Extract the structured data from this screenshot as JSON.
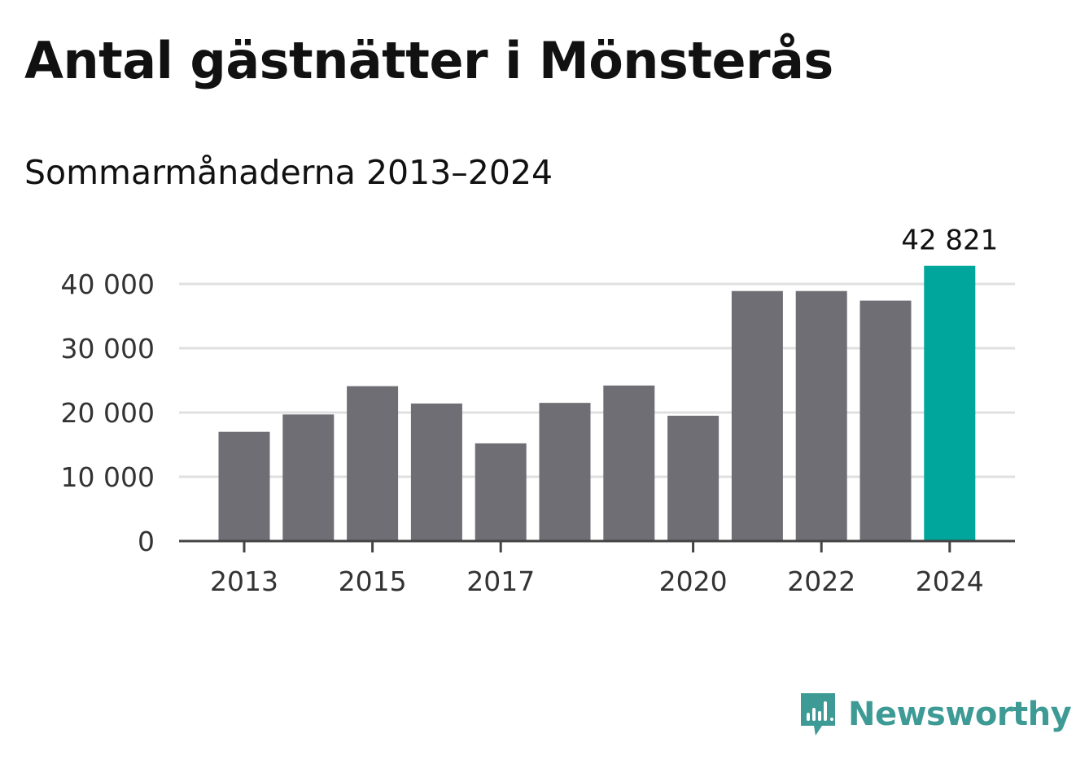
{
  "colors": {
    "bar": "#6f6e74",
    "highlight": "#00a59b",
    "grid": "#e0e0e0",
    "axis": "#444444",
    "brand": "#3e9a95"
  },
  "brand": {
    "name": "Newsworthy",
    "icon": "newsworthy-chart-icon"
  },
  "chart_data": {
    "type": "bar",
    "title": "Antal gästnätter i Mönsterås",
    "subtitle": "Sommarmånaderna 2013–2024",
    "categories": [
      "2013",
      "2014",
      "2015",
      "2016",
      "2017",
      "2018",
      "2019",
      "2020",
      "2021",
      "2022",
      "2023",
      "2024"
    ],
    "values": [
      17000,
      19700,
      24100,
      21400,
      15200,
      21500,
      24200,
      19500,
      38900,
      38900,
      37400,
      42821
    ],
    "x_tick_labels": [
      "2013",
      "2015",
      "2017",
      "2020",
      "2022",
      "2024"
    ],
    "y_ticks": [
      0,
      10000,
      20000,
      30000,
      40000
    ],
    "y_tick_labels": [
      "0",
      "10 000",
      "20 000",
      "30 000",
      "40 000"
    ],
    "ylim": [
      0,
      40000
    ],
    "highlight": {
      "category": "2024",
      "label": "42 821"
    },
    "grid": true
  }
}
